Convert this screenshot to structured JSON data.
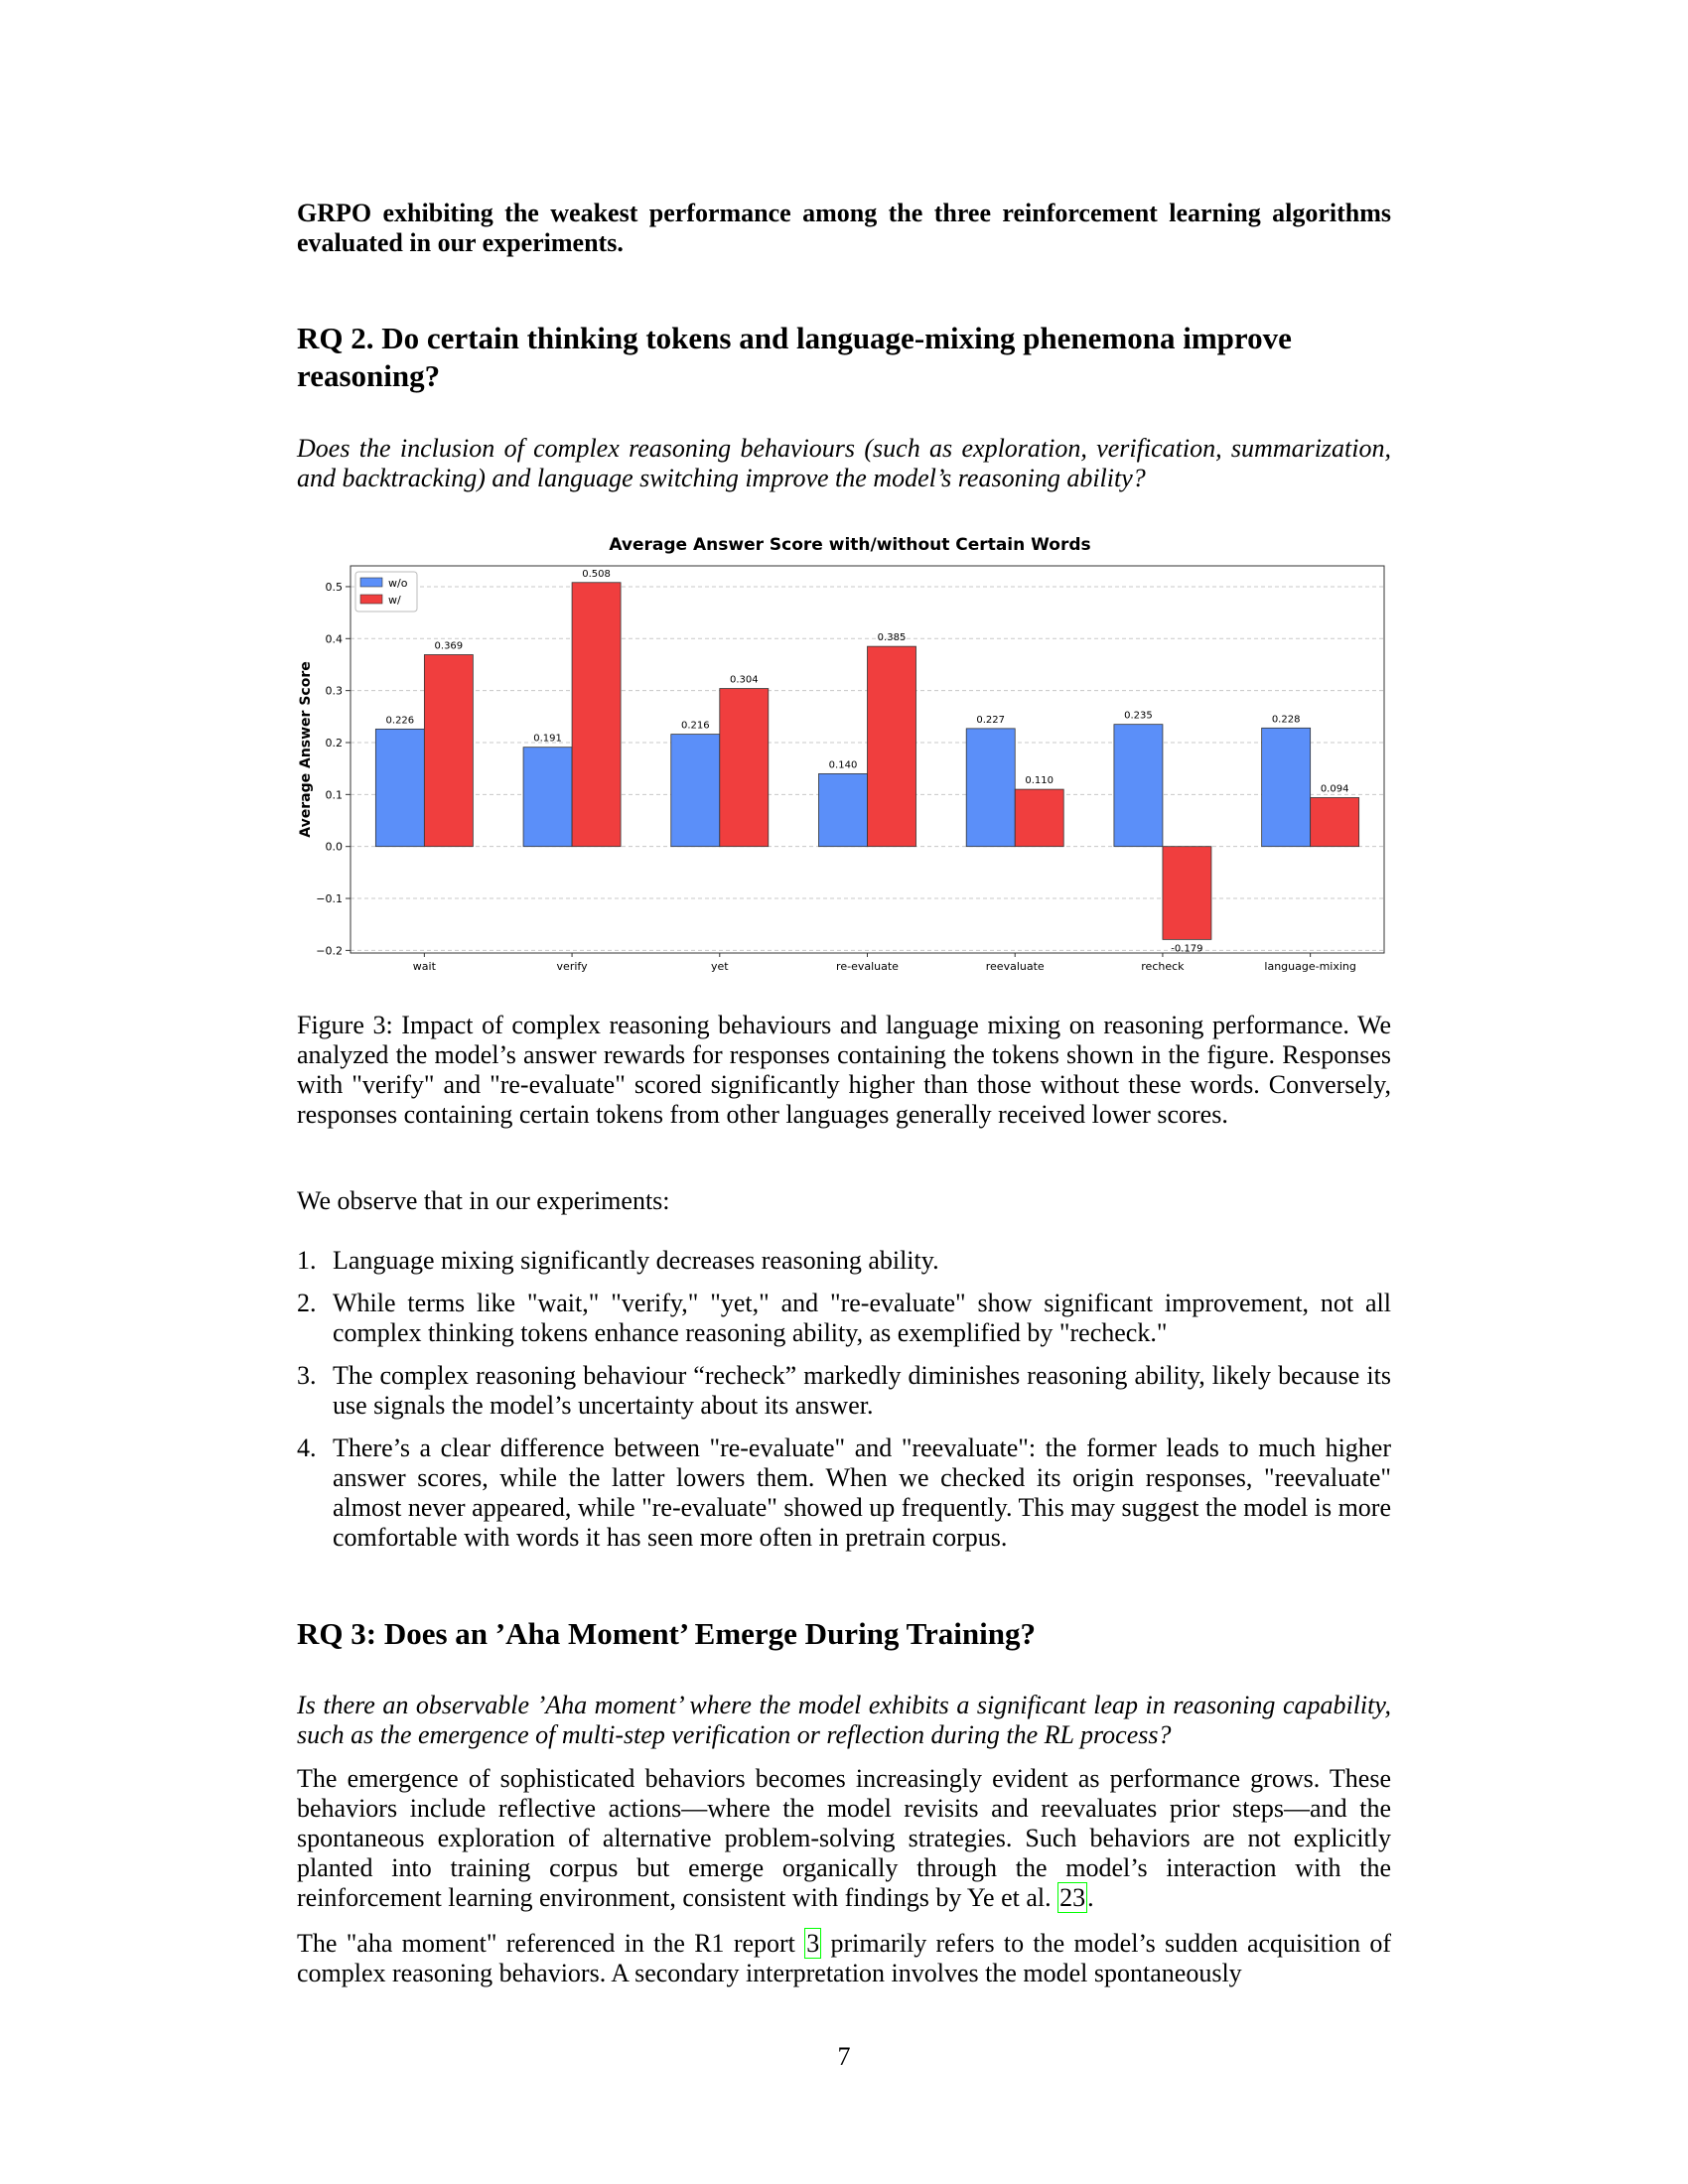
{
  "intro": "GRPO exhibiting the weakest performance among the three reinforcement learning algorithms evaluated in our experiments.",
  "rq2": {
    "title": "RQ 2. Do certain thinking tokens and language-mixing phenemona improve reasoning?",
    "question": "Does the inclusion of complex reasoning behaviours (such as exploration, verification, summarization, and backtracking) and language switching improve the model’s reasoning ability?"
  },
  "chart_data": {
    "type": "bar",
    "title": "Average Answer Score with/without Certain Words",
    "xlabel": "",
    "ylabel": "Average Answer Score",
    "categories": [
      "wait",
      "verify",
      "yet",
      "re-evaluate",
      "reevaluate",
      "recheck",
      "language-mixing"
    ],
    "series": [
      {
        "name": "w/o",
        "color": "#5b8ff9",
        "values": [
          0.226,
          0.191,
          0.216,
          0.14,
          0.227,
          0.235,
          0.228
        ],
        "labels": [
          "0.226",
          "0.191",
          "0.216",
          "0.140",
          "0.227",
          "0.235",
          "0.228"
        ]
      },
      {
        "name": "w/",
        "color": "#f03e3e",
        "values": [
          0.369,
          0.508,
          0.304,
          0.385,
          0.11,
          -0.179,
          0.094
        ],
        "labels": [
          "0.369",
          "0.508",
          "0.304",
          "0.385",
          "0.110",
          "-0.179",
          "0.094"
        ]
      }
    ],
    "yticks": [
      -0.2,
      -0.1,
      0.0,
      0.1,
      0.2,
      0.3,
      0.4,
      0.5
    ],
    "ytick_labels": [
      "−0.2",
      "−0.1",
      "0.0",
      "0.1",
      "0.2",
      "0.3",
      "0.4",
      "0.5"
    ],
    "ylim": [
      -0.205,
      0.54
    ],
    "grid": true,
    "legend_position": "top-left"
  },
  "caption": "Figure 3: Impact of complex reasoning behaviours and language mixing on reasoning performance. We analyzed the model’s answer rewards for responses containing the tokens shown in the figure. Responses with \"verify\" and \"re-evaluate\" scored significantly higher than those without these words. Conversely, responses containing certain tokens from other languages generally received lower scores.",
  "observe_intro": "We observe that in our experiments:",
  "observations": [
    {
      "num": "1.",
      "text": "Language mixing significantly decreases reasoning ability."
    },
    {
      "num": "2.",
      "text": "While terms like \"wait,\" \"verify,\" \"yet,\" and \"re-evaluate\" show significant improvement, not all complex thinking tokens enhance reasoning ability, as exemplified by \"recheck.\""
    },
    {
      "num": "3.",
      "text": "The complex reasoning behaviour “recheck” markedly diminishes reasoning ability, likely because its use signals the model’s uncertainty about its answer."
    },
    {
      "num": "4.",
      "text": "There’s a clear difference between \"re-evaluate\" and \"reevaluate\": the former leads to much higher answer scores, while the latter lowers them. When we checked its origin responses, \"reevaluate\" almost never appeared, while \"re-evaluate\" showed up frequently. This may suggest the model is more comfortable with words it has seen more often in pretrain corpus."
    }
  ],
  "rq3": {
    "title": "RQ 3: Does an ’Aha Moment’ Emerge During Training?",
    "question": "Is there an observable ’Aha moment’ where the model exhibits a significant leap in reasoning capability, such as the emergence of multi-step verification or reflection during the RL process?",
    "para1_text": "The emergence of sophisticated behaviors becomes increasingly evident as performance grows. These behaviors include reflective actions—where the model revisits and reevaluates prior steps—and the spontaneous exploration of alternative problem-solving strategies. Such behaviors are not explicitly planted into training corpus but emerge organically through the model’s interaction with the reinforcement learning environment, consistent with findings by Ye et al. ",
    "para1_cite": "23",
    "para1_end": ".",
    "para2_start": "The \"aha moment\" referenced in the R1 report ",
    "para2_cite": "3",
    "para2_text": " primarily refers to the model’s sudden acquisition of complex reasoning behaviors. A secondary interpretation involves the model spontaneously"
  },
  "page_number": "7"
}
